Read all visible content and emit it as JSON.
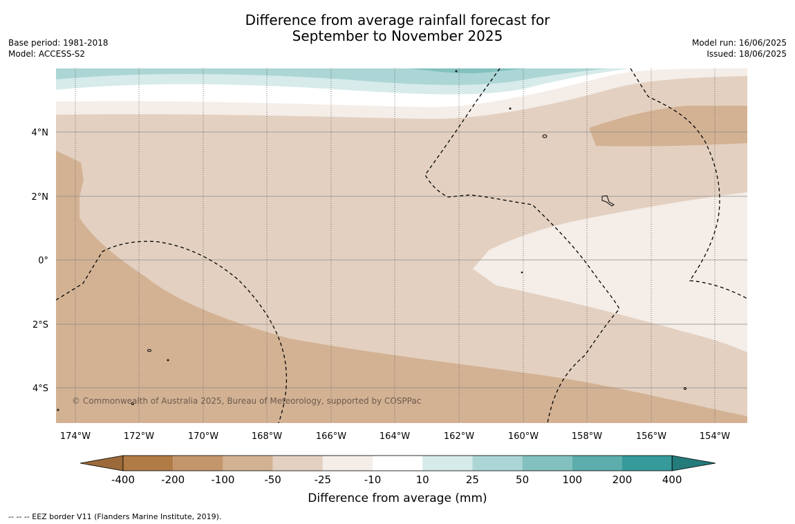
{
  "title": {
    "line1": "Difference from average rainfall forecast for",
    "line2": "September to November 2025"
  },
  "meta_left": {
    "base_period": "Base period: 1981-2018",
    "model": "Model: ACCESS-S2"
  },
  "meta_right": {
    "model_run": "Model run: 16/06/2025",
    "issued": "Issued: 18/06/2025"
  },
  "map": {
    "lat_labels": [
      "4°N",
      "2°N",
      "0°",
      "2°S",
      "4°S"
    ],
    "lon_labels": [
      "174°W",
      "172°W",
      "170°W",
      "168°W",
      "166°W",
      "164°W",
      "162°W",
      "160°W",
      "158°W",
      "156°W",
      "154°W"
    ],
    "copyright": "© Commonwealth of Australia 2025, Bureau of Meteorology, supported by COSPPac"
  },
  "colorbar": {
    "ticks": [
      "-400",
      "-200",
      "-100",
      "-50",
      "-25",
      "-10",
      "10",
      "25",
      "50",
      "100",
      "200",
      "400"
    ],
    "colors": [
      "#9c6a3a",
      "#b07b45",
      "#c4966c",
      "#d3b294",
      "#e3d0c0",
      "#f4ede8",
      "#ffffff",
      "#d6ebea",
      "#acd6d6",
      "#82c1bf",
      "#5cadac",
      "#36999a",
      "#237b7a"
    ],
    "label": "Difference from average (mm)"
  },
  "footnote": "--  --  -- EEZ border V11 (Flanders Marine Institute, 2019)."
}
